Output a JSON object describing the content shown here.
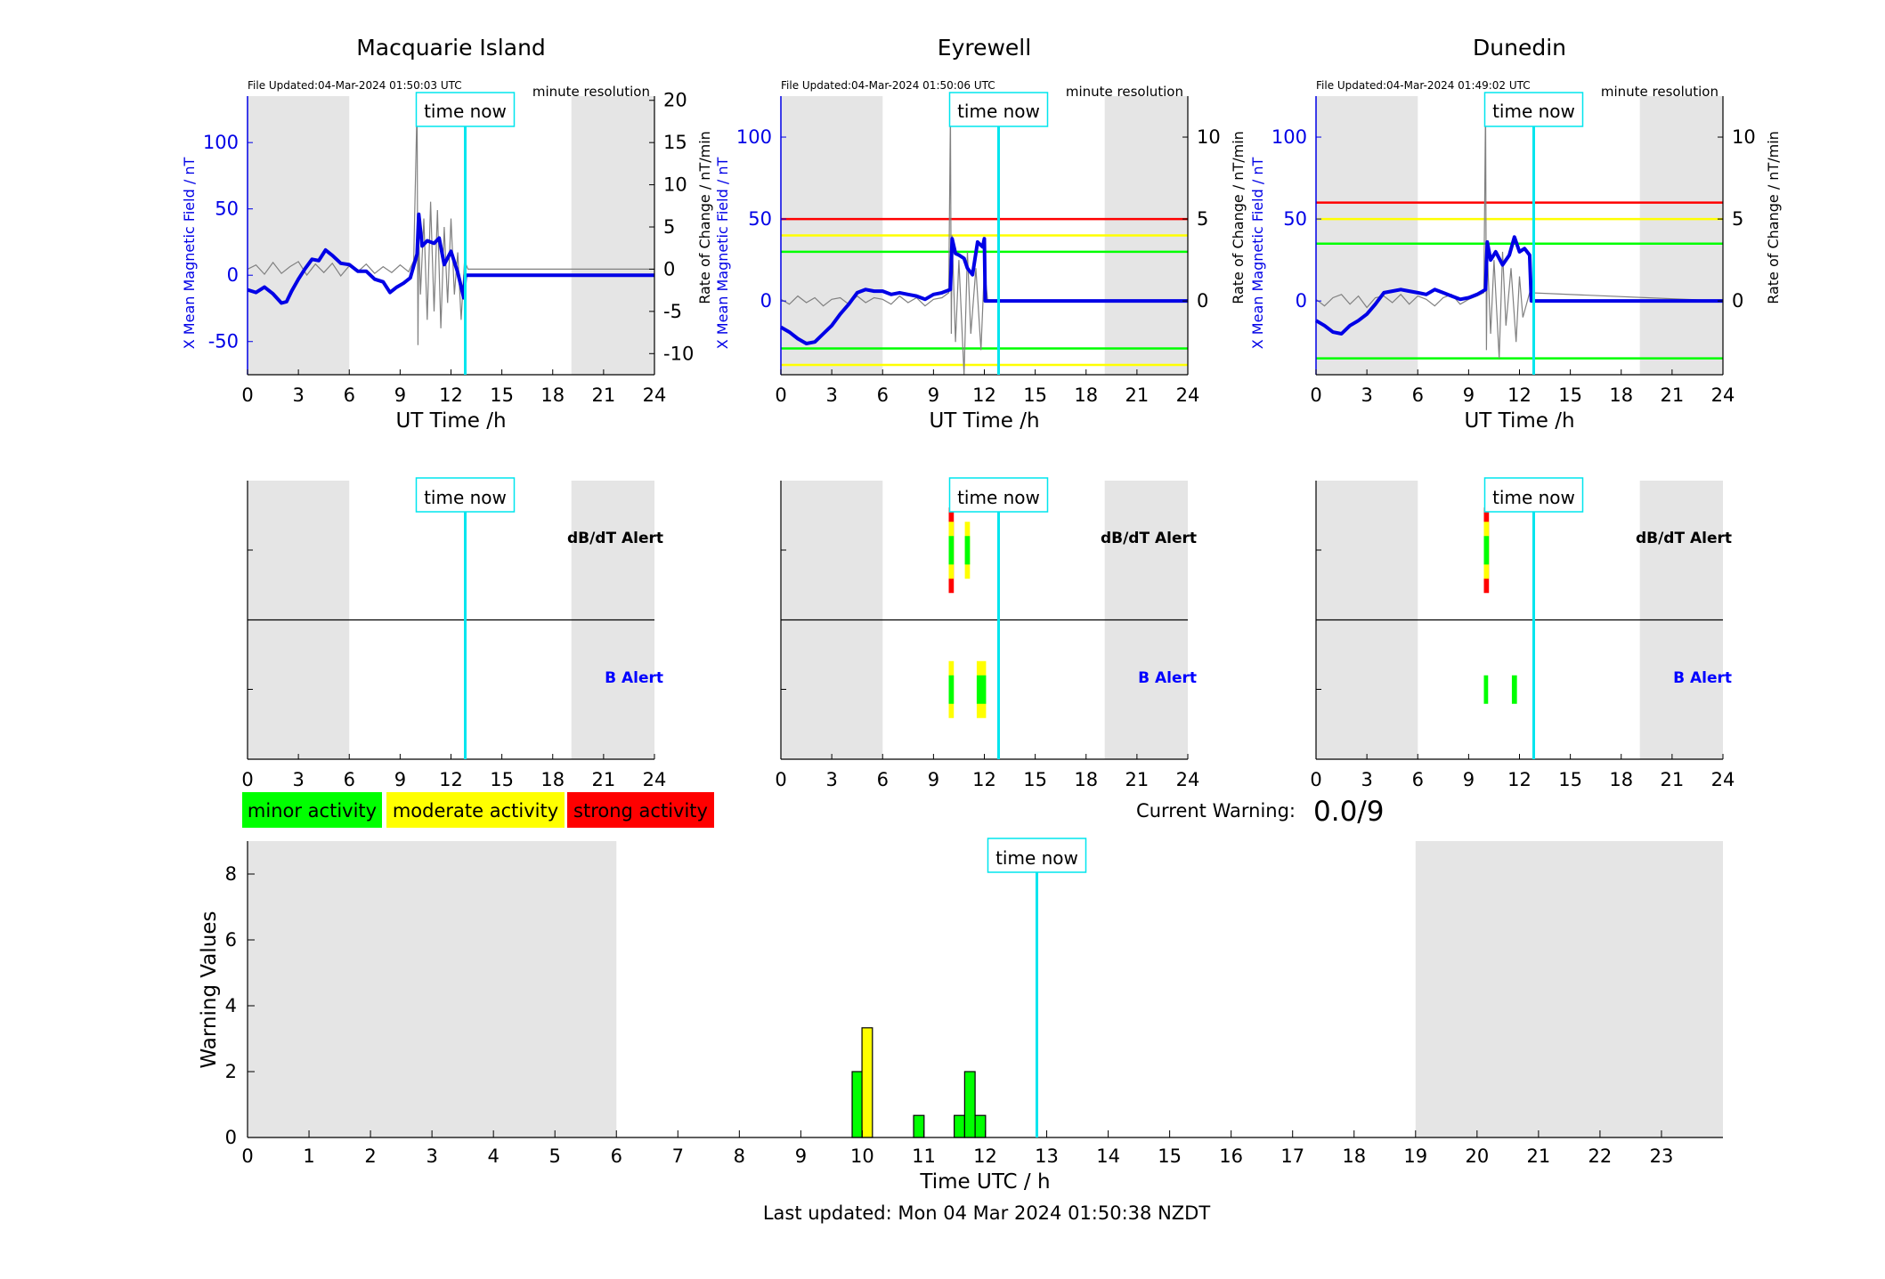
{
  "page": {
    "last_updated": "Last updated: Mon 04 Mar 2024 01:50:38 NZDT",
    "current_warning_label": "Current Warning:",
    "current_warning_value": "0.0/9",
    "time_now_label": "time now",
    "time_now_hour": 12.84,
    "colors": {
      "field": "#0000e6",
      "rate": "#808080",
      "now": "#00e5ee",
      "night": "#e5e5e5",
      "minor": "#00ff00",
      "moderate": "#ffff00",
      "strong": "#ff0000",
      "b_alert_label": "#0000ff"
    }
  },
  "legend": {
    "minor": "minor activity",
    "moderate": "moderate activity",
    "strong": "strong activity"
  },
  "chart_data": [
    {
      "type": "line",
      "title": "Macquarie Island",
      "file_updated": "File Updated:04-Mar-2024 01:50:03 UTC",
      "resolution_note": "minute resolution",
      "xlabel": "UT Time /h",
      "ylabel_left": "X Mean Magnetic Field / nT",
      "ylabel_right": "Rate of Change / nT/min",
      "xlim": [
        0,
        24
      ],
      "xticks": [
        0,
        3,
        6,
        9,
        12,
        15,
        18,
        21,
        24
      ],
      "ylim_left": [
        -75,
        135
      ],
      "yticks_left": [
        -50,
        0,
        50,
        100
      ],
      "ylim_right": [
        -12.5,
        20.5
      ],
      "yticks_right": [
        -10,
        -5,
        0,
        5,
        10,
        15,
        20
      ],
      "night_bands": [
        [
          0,
          6
        ],
        [
          19.1,
          24
        ]
      ],
      "thresholds": [],
      "series": [
        {
          "axis": "left",
          "x": [
            0,
            0.5,
            1,
            1.5,
            2,
            2.3,
            2.6,
            3,
            3.4,
            3.8,
            4.2,
            4.6,
            5,
            5.5,
            6,
            6.5,
            7,
            7.5,
            8,
            8.4,
            8.8,
            9.2,
            9.6,
            10,
            10.1,
            10.3,
            10.6,
            11,
            11.3,
            11.6,
            12,
            12.4,
            12.75,
            12.85,
            13,
            24
          ],
          "y": [
            -11,
            -13,
            -9,
            -14,
            -21,
            -20,
            -12,
            -3,
            5,
            12,
            11,
            19,
            15,
            9,
            8,
            3,
            3,
            -3,
            -5,
            -13,
            -9,
            -6,
            -2,
            16,
            46,
            22,
            26,
            24,
            28,
            8,
            18,
            2,
            -17,
            0,
            0,
            0
          ]
        },
        {
          "axis": "right",
          "x": [
            0,
            0.5,
            1,
            1.5,
            2,
            2.5,
            3,
            3.5,
            4,
            4.5,
            5,
            5.5,
            6,
            6.5,
            7,
            7.5,
            8,
            8.5,
            9,
            9.5,
            9.8,
            10,
            10.05,
            10.1,
            10.2,
            10.4,
            10.6,
            10.8,
            11,
            11.2,
            11.4,
            11.6,
            11.8,
            12,
            12.2,
            12.4,
            12.6,
            12.8,
            13,
            24
          ],
          "y": [
            0,
            0.5,
            -0.6,
            0.8,
            -0.5,
            0.3,
            0.9,
            -0.7,
            0.6,
            -0.4,
            0.7,
            -0.8,
            0.4,
            -0.3,
            0.6,
            -0.5,
            0.3,
            -0.4,
            0.5,
            -0.3,
            1,
            19.5,
            -9,
            4,
            -3,
            6,
            -6,
            8,
            -5,
            7,
            -7,
            5,
            -4,
            6,
            -3,
            2,
            -6,
            1,
            0,
            0
          ]
        }
      ]
    },
    {
      "type": "line",
      "title": "Eyrewell",
      "file_updated": "File Updated:04-Mar-2024 01:50:06 UTC",
      "resolution_note": "minute resolution",
      "xlabel": "UT Time /h",
      "ylabel_left": "X Mean Magnetic Field / nT",
      "ylabel_right": "Rate of Change / nT/min",
      "xlim": [
        0,
        24
      ],
      "xticks": [
        0,
        3,
        6,
        9,
        12,
        15,
        18,
        21,
        24
      ],
      "ylim_left": [
        -45,
        125
      ],
      "yticks_left": [
        0,
        50,
        100
      ],
      "ylim_right": [
        -4.5,
        12.5
      ],
      "yticks_right": [
        0,
        5,
        10
      ],
      "night_bands": [
        [
          0,
          6
        ],
        [
          19.1,
          24
        ]
      ],
      "thresholds": [
        {
          "axis": "right",
          "value": 5,
          "color": "#ff0000"
        },
        {
          "axis": "right",
          "value": 4,
          "color": "#ffff00"
        },
        {
          "axis": "right",
          "value": 3,
          "color": "#00ff00"
        },
        {
          "axis": "right",
          "value": -2.9,
          "color": "#00ff00"
        },
        {
          "axis": "right",
          "value": -3.9,
          "color": "#ffff00"
        }
      ],
      "series": [
        {
          "axis": "left",
          "x": [
            0,
            0.5,
            1,
            1.5,
            2,
            2.5,
            3,
            3.5,
            4,
            4.5,
            5,
            5.5,
            6,
            6.5,
            7,
            7.5,
            8,
            8.5,
            9,
            9.5,
            10,
            10.1,
            10.3,
            10.5,
            10.8,
            11,
            11.3,
            11.6,
            11.9,
            12,
            12.05,
            24
          ],
          "y": [
            -16,
            -19,
            -23,
            -26,
            -25,
            -20,
            -15,
            -8,
            -2,
            5,
            7,
            6,
            6,
            4,
            5,
            4,
            3,
            1,
            4,
            5,
            7,
            38,
            29,
            28,
            26,
            20,
            16,
            36,
            33,
            38,
            0,
            0
          ]
        },
        {
          "axis": "right",
          "x": [
            0,
            0.5,
            1,
            1.5,
            2,
            2.5,
            3,
            3.5,
            4,
            4.5,
            5,
            5.5,
            6,
            6.5,
            7,
            7.5,
            8,
            8.5,
            9,
            9.5,
            9.9,
            10,
            10.05,
            10.1,
            10.3,
            10.5,
            10.8,
            11,
            11.2,
            11.5,
            11.8,
            12,
            12.2,
            24
          ],
          "y": [
            0.1,
            -0.2,
            0.3,
            -0.1,
            0.2,
            -0.3,
            0.1,
            0.2,
            -0.2,
            0.3,
            -0.1,
            0.2,
            0.1,
            -0.2,
            0.3,
            -0.1,
            0.2,
            -0.3,
            0.1,
            0.2,
            0.5,
            11.5,
            -2,
            4,
            -2.5,
            2.5,
            -4.5,
            3,
            -2,
            2,
            -3,
            2,
            0,
            0
          ]
        }
      ]
    },
    {
      "type": "line",
      "title": "Dunedin",
      "file_updated": "File Updated:04-Mar-2024 01:49:02 UTC",
      "resolution_note": "minute resolution",
      "xlabel": "UT Time /h",
      "ylabel_left": "X Mean Magnetic Field / nT",
      "ylabel_right": "Rate of Change / nT/min",
      "xlim": [
        0,
        24
      ],
      "xticks": [
        0,
        3,
        6,
        9,
        12,
        15,
        18,
        21,
        24
      ],
      "ylim_left": [
        -45,
        125
      ],
      "yticks_left": [
        0,
        50,
        100
      ],
      "ylim_right": [
        -4.5,
        12.5
      ],
      "yticks_right": [
        0,
        5,
        10
      ],
      "night_bands": [
        [
          0,
          6
        ],
        [
          19.1,
          24
        ]
      ],
      "thresholds": [
        {
          "axis": "right",
          "value": 6,
          "color": "#ff0000"
        },
        {
          "axis": "right",
          "value": 5,
          "color": "#ffff00"
        },
        {
          "axis": "right",
          "value": 3.5,
          "color": "#00ff00"
        },
        {
          "axis": "right",
          "value": -3.5,
          "color": "#00ff00"
        }
      ],
      "series": [
        {
          "axis": "left",
          "x": [
            0,
            0.5,
            1,
            1.5,
            2,
            2.5,
            3,
            3.5,
            4,
            4.5,
            5,
            5.5,
            6,
            6.5,
            7,
            7.5,
            8,
            8.5,
            9,
            9.5,
            10,
            10.1,
            10.3,
            10.6,
            11,
            11.4,
            11.7,
            12,
            12.3,
            12.6,
            12.7,
            24
          ],
          "y": [
            -12,
            -15,
            -19,
            -20,
            -15,
            -12,
            -8,
            -2,
            5,
            6,
            7,
            6,
            5,
            4,
            7,
            5,
            3,
            1,
            2,
            4,
            7,
            36,
            25,
            30,
            22,
            28,
            39,
            30,
            32,
            28,
            0,
            0
          ]
        },
        {
          "axis": "right",
          "x": [
            0,
            0.5,
            1,
            1.5,
            2,
            2.5,
            3,
            3.5,
            4,
            4.5,
            5,
            5.5,
            6,
            6.5,
            7,
            7.5,
            8,
            8.5,
            9,
            9.5,
            9.9,
            10,
            10.05,
            10.1,
            10.3,
            10.5,
            10.8,
            11,
            11.2,
            11.5,
            11.8,
            12,
            12.2,
            12.6,
            24
          ],
          "y": [
            0.1,
            -0.3,
            0.2,
            0.4,
            -0.2,
            0.3,
            -0.4,
            0.2,
            0.3,
            -0.1,
            0.4,
            -0.2,
            0.3,
            0.1,
            -0.3,
            0.2,
            0.4,
            -0.2,
            0.1,
            0.3,
            0.5,
            12,
            -3,
            3,
            -2,
            2.5,
            -3.5,
            3,
            -1.5,
            2,
            -2.5,
            1.5,
            -1,
            0.5,
            0
          ]
        }
      ]
    },
    {
      "type": "bar",
      "station": "Macquarie Island",
      "xlim": [
        0,
        24
      ],
      "xticks": [
        0,
        3,
        6,
        9,
        12,
        15,
        18,
        21,
        24
      ],
      "night_bands": [
        [
          0,
          6
        ],
        [
          19.1,
          24
        ]
      ],
      "rows": [
        {
          "label": "dB/dT Alert",
          "label_color": "#000000",
          "events": []
        },
        {
          "label": "B Alert",
          "label_color": "#0000ff",
          "events": []
        }
      ]
    },
    {
      "type": "bar",
      "station": "Eyrewell",
      "xlim": [
        0,
        24
      ],
      "xticks": [
        0,
        3,
        6,
        9,
        12,
        15,
        18,
        21,
        24
      ],
      "night_bands": [
        [
          0,
          6
        ],
        [
          19.1,
          24
        ]
      ],
      "rows": [
        {
          "label": "dB/dT Alert",
          "label_color": "#000000",
          "events": [
            {
              "x0": 9.9,
              "x1": 10.2,
              "level": "strong"
            },
            {
              "x0": 10.85,
              "x1": 11.15,
              "level": "moderate"
            }
          ]
        },
        {
          "label": "B Alert",
          "label_color": "#0000ff",
          "events": [
            {
              "x0": 9.9,
              "x1": 10.2,
              "level": "moderate"
            },
            {
              "x0": 11.55,
              "x1": 12.1,
              "level": "moderate"
            }
          ]
        }
      ]
    },
    {
      "type": "bar",
      "station": "Dunedin",
      "xlim": [
        0,
        24
      ],
      "xticks": [
        0,
        3,
        6,
        9,
        12,
        15,
        18,
        21,
        24
      ],
      "night_bands": [
        [
          0,
          6
        ],
        [
          19.1,
          24
        ]
      ],
      "rows": [
        {
          "label": "dB/dT Alert",
          "label_color": "#000000",
          "events": [
            {
              "x0": 9.9,
              "x1": 10.2,
              "level": "strong"
            }
          ]
        },
        {
          "label": "B Alert",
          "label_color": "#0000ff",
          "events": [
            {
              "x0": 9.9,
              "x1": 10.15,
              "level": "minor"
            },
            {
              "x0": 11.55,
              "x1": 11.85,
              "level": "minor"
            }
          ]
        }
      ]
    },
    {
      "type": "bar",
      "xlabel": "Time UTC / h",
      "ylabel": "Warning Values",
      "xlim": [
        0,
        24
      ],
      "xticks": [
        0,
        1,
        2,
        3,
        4,
        5,
        6,
        7,
        8,
        9,
        10,
        11,
        12,
        13,
        14,
        15,
        16,
        17,
        18,
        19,
        20,
        21,
        22,
        23
      ],
      "ylim": [
        0,
        9
      ],
      "yticks": [
        0,
        2,
        4,
        6,
        8
      ],
      "night_bands": [
        [
          0,
          6
        ],
        [
          19,
          24
        ]
      ],
      "bars": [
        {
          "x": 9.92,
          "width": 0.17,
          "value": 2,
          "level": "minor"
        },
        {
          "x": 10.08,
          "width": 0.17,
          "value": 3.33,
          "level": "moderate"
        },
        {
          "x": 10.92,
          "width": 0.17,
          "value": 0.67,
          "level": "minor"
        },
        {
          "x": 11.58,
          "width": 0.17,
          "value": 0.67,
          "level": "minor"
        },
        {
          "x": 11.75,
          "width": 0.17,
          "value": 2,
          "level": "minor"
        },
        {
          "x": 11.92,
          "width": 0.17,
          "value": 0.67,
          "level": "minor"
        }
      ]
    }
  ]
}
